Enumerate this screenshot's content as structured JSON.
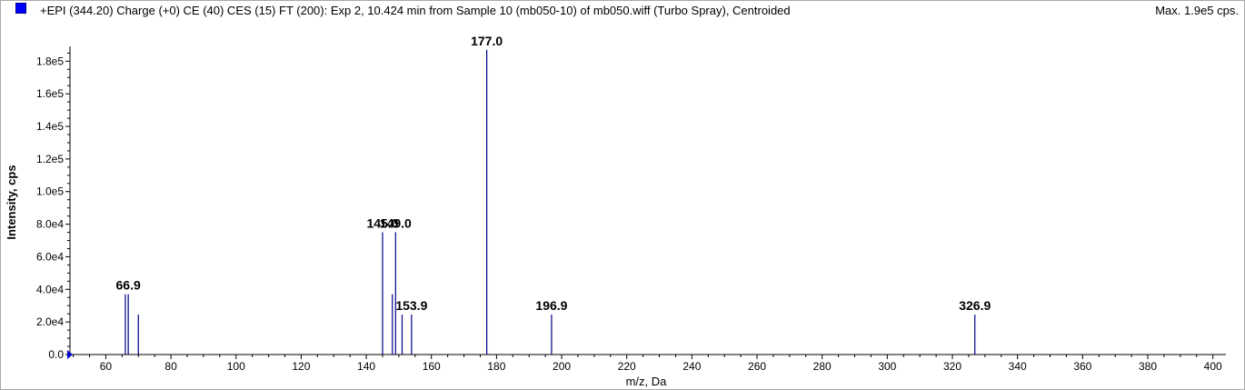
{
  "header": {
    "title": "+EPI (344.20) Charge (+0) CE (40) CES (15) FT (200): Exp 2, 10.424 min from Sample 10 (mb050-10) of mb050.wiff (Turbo Spray), Centroided",
    "max_label": "Max. 1.9e5 cps."
  },
  "colors": {
    "peak": "#00008b",
    "legend_square": "#0000ff",
    "axis": "#000000"
  },
  "chart_data": {
    "type": "bar",
    "title": "+EPI (344.20) Charge (+0) CE (40) CES (15) FT (200): Exp 2, 10.424 min from Sample 10 (mb050-10) of mb050.wiff (Turbo Spray), Centroided",
    "xlabel": "m/z, Da",
    "ylabel": "Intensity, cps",
    "xlim": [
      49,
      404
    ],
    "ylim": [
      0,
      188000
    ],
    "x_ticks": [
      60,
      80,
      100,
      120,
      140,
      160,
      180,
      200,
      220,
      240,
      260,
      280,
      300,
      320,
      340,
      360,
      380,
      400
    ],
    "x_tick_labels": [
      "60",
      "80",
      "100",
      "120",
      "140",
      "160",
      "180",
      "200",
      "220",
      "240",
      "260",
      "280",
      "300",
      "320",
      "340",
      "360",
      "380",
      "400"
    ],
    "y_ticks": [
      0,
      20000,
      40000,
      60000,
      80000,
      100000,
      120000,
      140000,
      160000,
      180000
    ],
    "y_tick_labels": [
      "0.0",
      "2.0e4",
      "4.0e4",
      "6.0e4",
      "8.0e4",
      "1.0e5",
      "1.2e5",
      "1.4e5",
      "1.6e5",
      "1.8e5"
    ],
    "grid": false,
    "peaks": [
      {
        "mz": 66.0,
        "intensity": 37000
      },
      {
        "mz": 66.9,
        "intensity": 37000
      },
      {
        "mz": 70.0,
        "intensity": 24500
      },
      {
        "mz": 145.0,
        "intensity": 75000
      },
      {
        "mz": 148.0,
        "intensity": 37000
      },
      {
        "mz": 149.0,
        "intensity": 75000
      },
      {
        "mz": 151.0,
        "intensity": 24500
      },
      {
        "mz": 153.9,
        "intensity": 24500
      },
      {
        "mz": 177.0,
        "intensity": 187000
      },
      {
        "mz": 196.9,
        "intensity": 24500
      },
      {
        "mz": 326.9,
        "intensity": 24500
      }
    ],
    "annotations": [
      {
        "text": "66.9",
        "mz": 66.9,
        "intensity": 37000
      },
      {
        "text": "145.0",
        "mz": 145.0,
        "intensity": 75000
      },
      {
        "text": "149.0",
        "mz": 149.0,
        "intensity": 75000
      },
      {
        "text": "153.9",
        "mz": 153.9,
        "intensity": 24500
      },
      {
        "text": "177.0",
        "mz": 177.0,
        "intensity": 187000
      },
      {
        "text": "196.9",
        "mz": 196.9,
        "intensity": 24500
      },
      {
        "text": "326.9",
        "mz": 326.9,
        "intensity": 24500
      }
    ]
  }
}
